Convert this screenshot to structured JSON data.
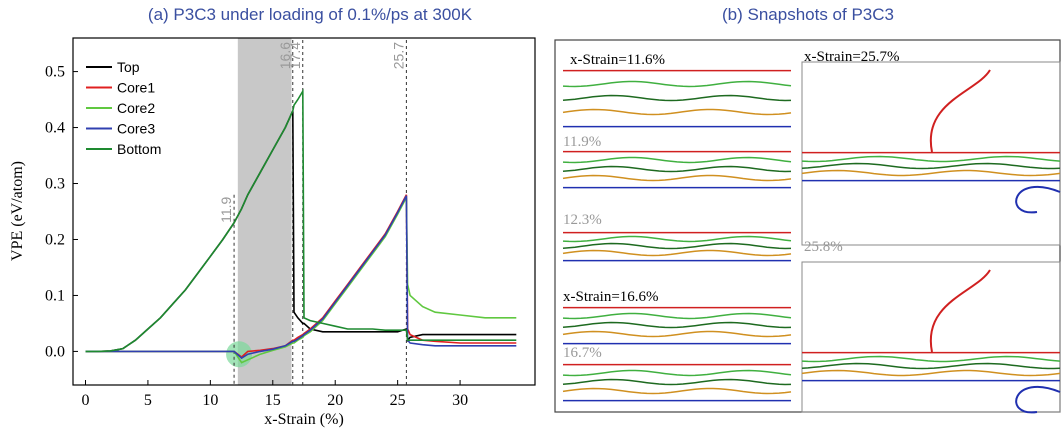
{
  "chart_data": {
    "type": "line",
    "title": "(a) P3C3 under loading of 0.1%/ps at 300K",
    "x_label": "x-Strain (%)",
    "y_label": "VPE (eV/atom)",
    "xlim": [
      -1,
      36
    ],
    "ylim": [
      -0.06,
      0.56
    ],
    "xticks": [
      0,
      5,
      10,
      15,
      20,
      25,
      30
    ],
    "yticks": [
      {
        "value": 0,
        "label": "0.0"
      },
      {
        "value": 0.1,
        "label": "0.1"
      },
      {
        "value": 0.2,
        "label": "0.2"
      },
      {
        "value": 0.3,
        "label": "0.3"
      },
      {
        "value": 0.4,
        "label": "0.4"
      },
      {
        "value": 0.5,
        "label": "0.5"
      }
    ],
    "legend": "upper left",
    "vlines": [
      11.9,
      16.6,
      17.4,
      25.7
    ],
    "shaded_span": [
      12.2,
      16.5
    ],
    "highlight": {
      "x": 12.3,
      "y": -0.005
    },
    "x": [
      0,
      1,
      2,
      3,
      4,
      5,
      6,
      7,
      8,
      9,
      10,
      11,
      11.9,
      12.5,
      13,
      14,
      15,
      16,
      16.6,
      16.7,
      17,
      17.4,
      17.5,
      18,
      19,
      20,
      21,
      22,
      23,
      24,
      25,
      25.7,
      25.8,
      26,
      27,
      28,
      30,
      32,
      34.5
    ],
    "series": [
      {
        "name": "Top",
        "color": "#000000",
        "values": [
          0,
          0,
          0.001,
          0.005,
          0.02,
          0.04,
          0.06,
          0.085,
          0.11,
          0.14,
          0.17,
          0.2,
          0.23,
          0.255,
          0.28,
          0.32,
          0.36,
          0.4,
          0.43,
          0.07,
          0.06,
          0.05,
          0.05,
          0.04,
          0.035,
          0.035,
          0.035,
          0.035,
          0.035,
          0.035,
          0.035,
          0.04,
          0.02,
          0.025,
          0.03,
          0.03,
          0.03,
          0.03,
          0.03
        ]
      },
      {
        "name": "Core1",
        "color": "#e02020",
        "values": [
          0,
          0,
          0,
          0,
          0,
          0,
          0,
          0,
          0,
          0,
          0,
          0,
          0,
          -0.01,
          0,
          0.002,
          0.005,
          0.01,
          0.02,
          0.02,
          0.025,
          0.03,
          0.032,
          0.04,
          0.06,
          0.09,
          0.12,
          0.15,
          0.18,
          0.21,
          0.25,
          0.28,
          0.04,
          0.03,
          0.02,
          0.018,
          0.015,
          0.015,
          0.015
        ]
      },
      {
        "name": "Core2",
        "color": "#60c840",
        "values": [
          0,
          0,
          0,
          0,
          0,
          0,
          0,
          0,
          0,
          0,
          0,
          0,
          0,
          -0.02,
          -0.015,
          -0.005,
          0.002,
          0.008,
          0.015,
          0.015,
          0.02,
          0.025,
          0.028,
          0.035,
          0.055,
          0.085,
          0.115,
          0.145,
          0.175,
          0.205,
          0.245,
          0.275,
          0.12,
          0.1,
          0.08,
          0.07,
          0.065,
          0.06,
          0.06
        ]
      },
      {
        "name": "Core3",
        "color": "#3040b0",
        "values": [
          0,
          0,
          0,
          0,
          0,
          0,
          0,
          0,
          0,
          0,
          0,
          0,
          0,
          -0.012,
          -0.005,
          0,
          0.004,
          0.01,
          0.018,
          0.018,
          0.022,
          0.028,
          0.03,
          0.038,
          0.058,
          0.088,
          0.118,
          0.148,
          0.178,
          0.208,
          0.248,
          0.278,
          0.02,
          0.015,
          0.012,
          0.01,
          0.01,
          0.01,
          0.01
        ]
      },
      {
        "name": "Bottom",
        "color": "#1e8a30",
        "values": [
          0,
          0,
          0.001,
          0.005,
          0.02,
          0.04,
          0.06,
          0.085,
          0.11,
          0.14,
          0.17,
          0.2,
          0.23,
          0.255,
          0.28,
          0.32,
          0.36,
          0.4,
          0.43,
          0.44,
          0.45,
          0.465,
          0.06,
          0.055,
          0.05,
          0.045,
          0.04,
          0.04,
          0.04,
          0.038,
          0.038,
          0.038,
          0.02,
          0.02,
          0.02,
          0.02,
          0.02,
          0.02,
          0.02
        ]
      }
    ]
  },
  "panel_b": {
    "title": "(b) Snapshots of P3C3",
    "labels": [
      "x-Strain=11.6%",
      "11.9%",
      "12.3%",
      "x-Strain=16.6%",
      "16.7%",
      "x-Strain=25.7%",
      "25.8%"
    ]
  }
}
